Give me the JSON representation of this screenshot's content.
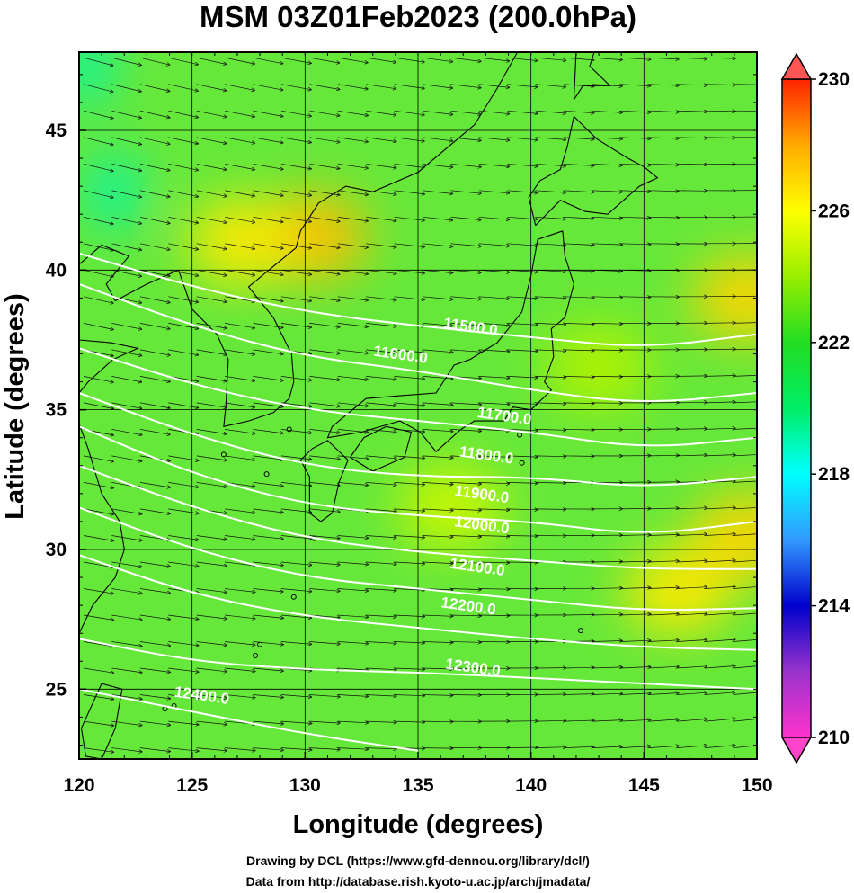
{
  "chart_data": {
    "type": "heatmap",
    "title": "MSM 03Z01Feb2023 (200.0hPa)",
    "xlabel": "Longitude (degrees)",
    "ylabel": "Latitude  (degrees)",
    "xlim": [
      120,
      150
    ],
    "ylim": [
      22.5,
      47.8
    ],
    "x_ticks": [
      "120",
      "125",
      "130",
      "135",
      "140",
      "145",
      "150"
    ],
    "y_ticks": [
      "25",
      "30",
      "35",
      "40",
      "45"
    ],
    "grid": true,
    "colorbar": {
      "range": [
        210,
        230
      ],
      "ticks": [
        "210",
        "214",
        "218",
        "222",
        "226",
        "230"
      ],
      "stops": [
        {
          "value": 210,
          "color": "#ff33cc"
        },
        {
          "value": 212,
          "color": "#9933cc"
        },
        {
          "value": 214,
          "color": "#0000cc"
        },
        {
          "value": 216,
          "color": "#3399ff"
        },
        {
          "value": 218,
          "color": "#00ffff"
        },
        {
          "value": 220,
          "color": "#00ee66"
        },
        {
          "value": 222,
          "color": "#22dd22"
        },
        {
          "value": 224,
          "color": "#99ee00"
        },
        {
          "value": 226,
          "color": "#ffff00"
        },
        {
          "value": 228,
          "color": "#ffaa00"
        },
        {
          "value": 230,
          "color": "#ff2200"
        }
      ]
    },
    "background_color": "#66e83a",
    "warm_patches": [
      {
        "lon": 130.4,
        "lat": 41.2,
        "value": 227.5
      },
      {
        "lon": 127.2,
        "lat": 41.0,
        "value": 226.5
      },
      {
        "lon": 146.5,
        "lat": 28.5,
        "value": 226.5
      },
      {
        "lon": 149.5,
        "lat": 30.5,
        "value": 227
      },
      {
        "lon": 149.5,
        "lat": 39.0,
        "value": 227
      },
      {
        "lon": 136.5,
        "lat": 31.5,
        "value": 225
      },
      {
        "lon": 143.0,
        "lat": 36.5,
        "value": 224.5
      }
    ],
    "cold_patches": [
      {
        "lon": 121.5,
        "lat": 42.8,
        "value": 219
      },
      {
        "lon": 120.3,
        "lat": 47.3,
        "value": 219
      }
    ],
    "contours": [
      {
        "label": "11500.0",
        "label_lon": 137.3,
        "label_lat": 37.8,
        "points": [
          [
            120,
            40.6
          ],
          [
            125,
            39.4
          ],
          [
            130,
            38.5
          ],
          [
            135,
            38.0
          ],
          [
            140,
            37.6
          ],
          [
            145,
            37.2
          ],
          [
            150,
            37.7
          ]
        ]
      },
      {
        "label": "11600.0",
        "label_lon": 134.2,
        "label_lat": 36.8,
        "points": [
          [
            120,
            39.5
          ],
          [
            125,
            38.0
          ],
          [
            130,
            36.9
          ],
          [
            135,
            36.4
          ],
          [
            140,
            35.7
          ],
          [
            145,
            35.2
          ],
          [
            150,
            35.6
          ]
        ]
      },
      {
        "label": "11700.0",
        "label_lon": 138.8,
        "label_lat": 34.6,
        "points": [
          [
            120,
            37.2
          ],
          [
            125,
            35.9
          ],
          [
            130,
            35.0
          ],
          [
            135,
            34.6
          ],
          [
            140,
            34.2
          ],
          [
            145,
            33.6
          ],
          [
            150,
            34.0
          ]
        ]
      },
      {
        "label": "11800.0",
        "label_lon": 138.0,
        "label_lat": 33.2,
        "points": [
          [
            120,
            35.6
          ],
          [
            125,
            34.1
          ],
          [
            130,
            33.0
          ],
          [
            135,
            32.6
          ],
          [
            140,
            32.6
          ],
          [
            145,
            32.2
          ],
          [
            150,
            32.6
          ]
        ]
      },
      {
        "label": "11900.0",
        "label_lon": 137.8,
        "label_lat": 31.8,
        "points": [
          [
            120,
            34.4
          ],
          [
            125,
            32.7
          ],
          [
            130,
            31.6
          ],
          [
            135,
            31.2
          ],
          [
            140,
            31.0
          ],
          [
            145,
            30.5
          ],
          [
            150,
            31.0
          ]
        ]
      },
      {
        "label": "12000.0",
        "label_lon": 137.8,
        "label_lat": 30.7,
        "points": [
          [
            120,
            33.0
          ],
          [
            125,
            31.5
          ],
          [
            130,
            30.4
          ],
          [
            135,
            29.9
          ],
          [
            140,
            29.6
          ],
          [
            145,
            29.3
          ],
          [
            150,
            29.3
          ]
        ]
      },
      {
        "label": "12100.0",
        "label_lon": 137.6,
        "label_lat": 29.2,
        "points": [
          [
            120,
            31.5
          ],
          [
            125,
            30.0
          ],
          [
            130,
            29.0
          ],
          [
            135,
            28.6
          ],
          [
            140,
            28.2
          ],
          [
            145,
            27.8
          ],
          [
            150,
            27.9
          ]
        ]
      },
      {
        "label": "12200.0",
        "label_lon": 137.2,
        "label_lat": 27.8,
        "points": [
          [
            120,
            29.8
          ],
          [
            125,
            28.4
          ],
          [
            130,
            27.6
          ],
          [
            135,
            27.2
          ],
          [
            140,
            26.8
          ],
          [
            145,
            26.5
          ],
          [
            150,
            26.4
          ]
        ]
      },
      {
        "label": "12300.0",
        "label_lon": 137.4,
        "label_lat": 25.6,
        "points": [
          [
            120,
            26.8
          ],
          [
            125,
            26.0
          ],
          [
            130,
            25.7
          ],
          [
            135,
            25.6
          ],
          [
            140,
            25.4
          ],
          [
            145,
            25.2
          ],
          [
            150,
            25.0
          ]
        ]
      },
      {
        "label": "12400.0",
        "label_lon": 125.4,
        "label_lat": 24.6,
        "points": [
          [
            120,
            25.0
          ],
          [
            125,
            24.2
          ],
          [
            130,
            23.4
          ],
          [
            135,
            22.8
          ]
        ]
      }
    ],
    "wind_vectors": "uniform eastward flow with poleward curvature",
    "coastlines": [
      {
        "name": "honshu",
        "points": [
          [
            141.4,
            41.4
          ],
          [
            141.5,
            40.5
          ],
          [
            141.9,
            39.5
          ],
          [
            141.5,
            38.3
          ],
          [
            140.9,
            37.9
          ],
          [
            141.0,
            36.9
          ],
          [
            140.6,
            36.0
          ],
          [
            140.9,
            35.7
          ],
          [
            140.0,
            35.0
          ],
          [
            139.2,
            35.1
          ],
          [
            138.8,
            34.6
          ],
          [
            137.5,
            34.6
          ],
          [
            136.9,
            34.3
          ],
          [
            135.8,
            33.5
          ],
          [
            135.1,
            34.2
          ],
          [
            134.2,
            34.6
          ],
          [
            132.5,
            34.2
          ],
          [
            131.0,
            34.0
          ],
          [
            131.2,
            34.4
          ],
          [
            132.7,
            35.4
          ],
          [
            134.2,
            35.5
          ],
          [
            135.8,
            35.6
          ],
          [
            136.6,
            36.6
          ],
          [
            137.3,
            36.8
          ],
          [
            138.5,
            37.4
          ],
          [
            139.6,
            38.5
          ],
          [
            140.0,
            39.8
          ],
          [
            140.3,
            41.1
          ],
          [
            141.4,
            41.4
          ]
        ]
      },
      {
        "name": "hokkaido",
        "points": [
          [
            140.2,
            41.6
          ],
          [
            141.3,
            42.5
          ],
          [
            142.4,
            42.1
          ],
          [
            143.4,
            42.0
          ],
          [
            144.8,
            43.0
          ],
          [
            145.6,
            43.3
          ],
          [
            145.0,
            43.7
          ],
          [
            144.3,
            44.0
          ],
          [
            142.9,
            44.7
          ],
          [
            141.9,
            45.5
          ],
          [
            141.6,
            44.4
          ],
          [
            141.3,
            43.6
          ],
          [
            140.4,
            43.2
          ],
          [
            139.9,
            42.6
          ],
          [
            140.2,
            41.6
          ]
        ]
      },
      {
        "name": "sakhalin",
        "points": [
          [
            141.9,
            46.1
          ],
          [
            142.3,
            46.6
          ],
          [
            143.5,
            46.6
          ],
          [
            142.6,
            47.3
          ],
          [
            142.8,
            47.8
          ],
          [
            142.0,
            47.8
          ],
          [
            141.9,
            46.1
          ]
        ]
      },
      {
        "name": "shikoku",
        "points": [
          [
            132.0,
            33.3
          ],
          [
            133.0,
            32.8
          ],
          [
            134.4,
            33.3
          ],
          [
            134.7,
            34.2
          ],
          [
            133.6,
            34.4
          ],
          [
            132.6,
            34.0
          ],
          [
            132.0,
            33.3
          ]
        ]
      },
      {
        "name": "kyushu",
        "points": [
          [
            129.8,
            33.2
          ],
          [
            130.2,
            32.6
          ],
          [
            130.2,
            31.3
          ],
          [
            130.7,
            31.0
          ],
          [
            131.2,
            31.3
          ],
          [
            131.5,
            32.4
          ],
          [
            131.9,
            33.2
          ],
          [
            131.0,
            33.9
          ],
          [
            130.3,
            33.6
          ],
          [
            129.8,
            33.2
          ]
        ]
      },
      {
        "name": "korea",
        "points": [
          [
            124.4,
            40.0
          ],
          [
            125.0,
            38.6
          ],
          [
            126.1,
            37.7
          ],
          [
            126.6,
            36.8
          ],
          [
            126.5,
            35.2
          ],
          [
            126.4,
            34.4
          ],
          [
            127.5,
            34.6
          ],
          [
            128.6,
            34.9
          ],
          [
            129.3,
            35.4
          ],
          [
            129.5,
            36.0
          ],
          [
            129.4,
            37.0
          ],
          [
            128.6,
            38.3
          ],
          [
            127.5,
            39.4
          ],
          [
            128.4,
            40.0
          ],
          [
            129.6,
            40.8
          ],
          [
            129.8,
            41.4
          ],
          [
            130.6,
            42.4
          ]
        ]
      },
      {
        "name": "asia-coast",
        "points": [
          [
            130.6,
            42.4
          ],
          [
            131.8,
            43.0
          ],
          [
            133.0,
            42.8
          ],
          [
            135.0,
            43.5
          ],
          [
            137.5,
            45.2
          ],
          [
            138.5,
            46.5
          ],
          [
            139.4,
            47.8
          ]
        ]
      },
      {
        "name": "china-coast",
        "points": [
          [
            124.4,
            40.0
          ],
          [
            123.0,
            39.5
          ],
          [
            121.6,
            38.9
          ],
          [
            121.2,
            39.5
          ],
          [
            122.2,
            40.5
          ],
          [
            121.0,
            40.9
          ],
          [
            120.0,
            40.2
          ]
        ]
      },
      {
        "name": "shandong",
        "points": [
          [
            120.0,
            37.5
          ],
          [
            121.4,
            37.4
          ],
          [
            122.6,
            37.2
          ],
          [
            121.5,
            36.8
          ],
          [
            120.4,
            36.0
          ],
          [
            120.0,
            35.6
          ]
        ]
      },
      {
        "name": "taiwan",
        "points": [
          [
            121.0,
            25.2
          ],
          [
            121.9,
            25.0
          ],
          [
            121.6,
            23.6
          ],
          [
            121.0,
            22.5
          ],
          [
            120.3,
            22.6
          ],
          [
            120.1,
            23.6
          ],
          [
            121.0,
            25.2
          ]
        ]
      },
      {
        "name": "china-se",
        "points": [
          [
            120.0,
            27.0
          ],
          [
            120.6,
            28.0
          ],
          [
            121.6,
            29.0
          ],
          [
            122.0,
            30.0
          ],
          [
            121.8,
            31.0
          ],
          [
            121.0,
            32.0
          ],
          [
            120.4,
            33.6
          ],
          [
            120.0,
            34.5
          ]
        ]
      }
    ],
    "islands": [
      [
        126.4,
        33.4
      ],
      [
        128.3,
        32.7
      ],
      [
        129.3,
        34.3
      ],
      [
        130.4,
        30.4
      ],
      [
        129.5,
        28.3
      ],
      [
        128.0,
        26.6
      ],
      [
        127.8,
        26.2
      ],
      [
        124.2,
        24.4
      ],
      [
        125.3,
        24.8
      ],
      [
        123.8,
        24.3
      ],
      [
        142.2,
        27.1
      ],
      [
        139.6,
        33.1
      ],
      [
        139.5,
        34.1
      ]
    ]
  },
  "credits": {
    "line1": "Drawing by DCL (https://www.gfd-dennou.org/library/dcl/)",
    "line2": "Data from http://database.rish.kyoto-u.ac.jp/arch/jmadata/"
  }
}
